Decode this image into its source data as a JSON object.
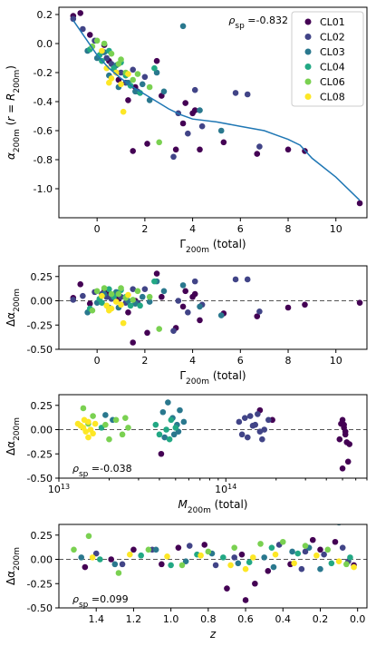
{
  "colors": {
    "CL01": "#440154",
    "CL02": "#414487",
    "CL03": "#2a788e",
    "CL04": "#22a884",
    "CL06": "#7ad151",
    "CL08": "#fde725",
    "fit": "#1f77b4",
    "zero_line": "#555555"
  },
  "legend": [
    "CL01",
    "CL02",
    "CL03",
    "CL04",
    "CL06",
    "CL08"
  ],
  "chart_data": [
    {
      "type": "scatter",
      "panel": "top",
      "annotation": "ρ_sp = -0.832",
      "xlabel": "Γ_200m (total)",
      "ylabel": "α_200m (r = R_200m)",
      "xlim": [
        -1.6,
        11.3
      ],
      "ylim": [
        -1.2,
        0.25
      ],
      "xticks": [
        "0",
        "2",
        "4",
        "6",
        "8",
        "10"
      ],
      "yticks": [
        "0.2",
        "0.0",
        "-0.2",
        "-0.4",
        "-0.6",
        "-0.8",
        "-1.0"
      ],
      "fit_line": {
        "x": [
          -1.0,
          -0.5,
          0,
          0.5,
          1,
          1.5,
          2,
          2.5,
          3,
          3.5,
          4,
          5,
          6,
          7,
          7.5,
          8,
          8.5,
          9,
          10,
          11
        ],
        "y": [
          0.16,
          0.04,
          -0.08,
          -0.17,
          -0.24,
          -0.3,
          -0.35,
          -0.4,
          -0.45,
          -0.49,
          -0.52,
          -0.54,
          -0.57,
          -0.6,
          -0.63,
          -0.66,
          -0.7,
          -0.79,
          -0.92,
          -1.08
        ]
      },
      "series": [
        {
          "name": "CL01",
          "x": [
            -1.0,
            -0.7,
            -0.3,
            0.3,
            0.5,
            0.8,
            1.3,
            1.5,
            2.1,
            2.7,
            3.3,
            3.6,
            3.7,
            4.0,
            4.1,
            4.3,
            5.3,
            6.7,
            8.0,
            8.7,
            11.0,
            1.6,
            0.9,
            2.5
          ],
          "y": [
            0.19,
            0.21,
            0.06,
            -0.01,
            -0.12,
            -0.2,
            -0.39,
            -0.74,
            -0.69,
            -0.36,
            -0.73,
            -0.55,
            -0.41,
            -0.48,
            -0.46,
            -0.73,
            -0.68,
            -0.76,
            -0.73,
            -0.74,
            -1.1,
            -0.3,
            -0.25,
            -0.12
          ]
        },
        {
          "name": "CL02",
          "x": [
            -1.0,
            -0.6,
            -0.1,
            0.2,
            0.6,
            1.0,
            1.2,
            1.7,
            2.0,
            3.2,
            3.4,
            3.8,
            4.1,
            4.4,
            5.8,
            6.3,
            6.8,
            0.4,
            1.5
          ],
          "y": [
            0.17,
            0.1,
            0.02,
            -0.06,
            -0.14,
            -0.2,
            -0.27,
            -0.33,
            -0.23,
            -0.78,
            -0.48,
            -0.62,
            -0.32,
            -0.57,
            -0.34,
            -0.35,
            -0.71,
            -0.1,
            -0.18
          ]
        },
        {
          "name": "CL03",
          "x": [
            -0.4,
            0,
            0.3,
            0.5,
            0.9,
            1.3,
            1.6,
            2.2,
            2.5,
            2.8,
            3.6,
            4.3,
            5.2,
            0.8,
            1.9
          ],
          "y": [
            -0.05,
            -0.1,
            -0.06,
            -0.22,
            -0.3,
            -0.27,
            -0.33,
            -0.39,
            -0.2,
            -0.33,
            0.12,
            -0.46,
            -0.6,
            -0.15,
            -0.28
          ]
        },
        {
          "name": "CL04",
          "x": [
            -0.3,
            0.1,
            0.2,
            0.7,
            1.0,
            1.4,
            1.8,
            2.4,
            1.2,
            0.5
          ],
          "y": [
            -0.04,
            -0.08,
            -0.12,
            -0.17,
            -0.13,
            -0.29,
            -0.34,
            -0.17,
            -0.22,
            -0.05
          ]
        },
        {
          "name": "CL06",
          "x": [
            -0.2,
            0.3,
            0.6,
            0.9,
            1.2,
            1.5,
            1.7,
            2.2,
            2.6,
            0.0,
            1.0
          ],
          "y": [
            -0.02,
            0.0,
            -0.07,
            -0.14,
            -0.2,
            -0.25,
            -0.21,
            -0.3,
            -0.68,
            0.02,
            -0.11
          ]
        },
        {
          "name": "CL08",
          "x": [
            0.2,
            0.4,
            0.6,
            0.8,
            1.0,
            1.1,
            1.3,
            0.5
          ],
          "y": [
            -0.05,
            -0.17,
            -0.24,
            -0.2,
            -0.28,
            -0.47,
            -0.21,
            -0.27
          ]
        }
      ]
    },
    {
      "type": "scatter",
      "panel": "residual_vs_gamma",
      "xlabel": "Γ_200m (total)",
      "ylabel": "Δα_200m",
      "xlim": [
        -1.6,
        11.3
      ],
      "ylim": [
        -0.5,
        0.36
      ],
      "xticks": [
        "0",
        "2",
        "4",
        "6",
        "8",
        "10"
      ],
      "yticks": [
        "0.25",
        "0.00",
        "-0.25",
        "-0.50"
      ],
      "zero_line": 0,
      "series": [
        {
          "name": "CL01",
          "x": [
            -1.0,
            -0.7,
            -0.3,
            0.3,
            0.5,
            0.8,
            1.3,
            1.5,
            2.1,
            2.7,
            3.3,
            3.6,
            3.7,
            4.0,
            4.1,
            4.3,
            5.3,
            6.7,
            8.0,
            8.7,
            11.0,
            1.6,
            0.9,
            2.5
          ],
          "y": [
            0.03,
            0.17,
            -0.03,
            0.1,
            0.07,
            0.06,
            -0.12,
            -0.43,
            -0.33,
            0.04,
            -0.28,
            -0.06,
            0.1,
            0.04,
            0.07,
            -0.2,
            -0.13,
            -0.16,
            -0.07,
            -0.04,
            -0.02,
            0.0,
            0.02,
            0.28
          ]
        },
        {
          "name": "CL02",
          "x": [
            -1.0,
            -0.6,
            -0.1,
            0.2,
            0.6,
            1.0,
            1.2,
            1.7,
            2.0,
            3.2,
            3.4,
            3.8,
            4.1,
            4.4,
            5.8,
            6.3,
            6.8,
            0.4,
            1.5
          ],
          "y": [
            0.01,
            0.05,
            0.09,
            0.07,
            0.02,
            0.04,
            -0.02,
            -0.02,
            0.12,
            -0.31,
            -0.0,
            -0.12,
            0.2,
            -0.04,
            0.22,
            0.22,
            -0.11,
            0.04,
            0.12
          ]
        },
        {
          "name": "CL03",
          "x": [
            -0.4,
            0,
            0.3,
            0.5,
            0.9,
            1.3,
            1.6,
            2.2,
            2.5,
            2.8,
            3.6,
            4.3,
            5.2,
            0.8,
            1.9
          ],
          "y": [
            -0.12,
            -0.02,
            0.07,
            -0.07,
            -0.07,
            0.0,
            -0.03,
            -0.01,
            0.2,
            0.1,
            0.16,
            -0.06,
            -0.15,
            0.09,
            0.04
          ]
        },
        {
          "name": "CL04",
          "x": [
            -0.3,
            0.1,
            0.2,
            0.7,
            1.0,
            1.4,
            1.8,
            2.4,
            1.2,
            0.5
          ],
          "y": [
            -0.08,
            0.02,
            -0.02,
            0.04,
            0.11,
            -0.05,
            -0.05,
            0.2,
            0.04,
            0.12
          ]
        },
        {
          "name": "CL06",
          "x": [
            -0.2,
            0.3,
            0.6,
            0.9,
            1.2,
            1.5,
            1.7,
            2.2,
            2.6,
            0.0,
            1.0
          ],
          "y": [
            -0.1,
            0.13,
            0.07,
            0.07,
            0.03,
            0.01,
            0.1,
            0.04,
            -0.29,
            0.1,
            0.13
          ]
        },
        {
          "name": "CL08",
          "x": [
            0.2,
            0.4,
            0.6,
            0.8,
            1.0,
            1.1,
            1.3,
            0.5
          ],
          "y": [
            0.05,
            -0.05,
            -0.08,
            -0.01,
            -0.04,
            -0.23,
            0.06,
            -0.1
          ]
        }
      ]
    },
    {
      "type": "scatter",
      "panel": "residual_vs_mass",
      "annotation": "ρ_sp = -0.038",
      "xlabel": "M_200m (total)",
      "ylabel": "Δα_200m",
      "x_scale": "log",
      "xlim": [
        10000000000000.0,
        700000000000000.0
      ],
      "ylim": [
        -0.5,
        0.36
      ],
      "xticks": [
        "10^13",
        "10^14"
      ],
      "yticks": [
        "0.25",
        "0.00",
        "-0.25",
        "-0.50"
      ],
      "zero_line": 0,
      "series": [
        {
          "name": "CL01",
          "x": [
            500000000000000.0,
            510000000000000.0,
            520000000000000.0,
            530000000000000.0,
            500000000000000.0,
            540000000000000.0,
            490000000000000.0,
            520000000000000.0,
            41000000000000.0,
            160000000000000.0,
            190000000000000.0,
            550000000000000.0,
            510000000000000.0,
            480000000000000.0
          ],
          "y": [
            0.1,
            0.02,
            -0.05,
            -0.13,
            -0.4,
            -0.33,
            0.06,
            -0.02,
            -0.25,
            0.2,
            0.1,
            -0.15,
            0.05,
            -0.1
          ]
        },
        {
          "name": "CL02",
          "x": [
            120000000000000.0,
            130000000000000.0,
            140000000000000.0,
            150000000000000.0,
            160000000000000.0,
            170000000000000.0,
            180000000000000.0,
            135000000000000.0,
            155000000000000.0,
            125000000000000.0,
            145000000000000.0,
            165000000000000.0
          ],
          "y": [
            0.08,
            0.12,
            0.14,
            0.05,
            -0.02,
            0.0,
            0.1,
            -0.08,
            0.16,
            -0.05,
            0.04,
            -0.1
          ]
        },
        {
          "name": "CL03",
          "x": [
            42000000000000.0,
            45000000000000.0,
            48000000000000.0,
            51000000000000.0,
            53000000000000.0,
            56000000000000.0,
            43000000000000.0,
            49000000000000.0,
            19000000000000.0,
            21000000000000.0,
            52000000000000.0
          ],
          "y": [
            0.18,
            0.28,
            0.12,
            0.05,
            0.2,
            0.08,
            -0.08,
            -0.05,
            0.15,
            0.1,
            -0.02
          ]
        },
        {
          "name": "CL04",
          "x": [
            38000000000000.0,
            40000000000000.0,
            44000000000000.0,
            47000000000000.0,
            50000000000000.0,
            46000000000000.0,
            18000000000000.0
          ],
          "y": [
            0.05,
            -0.05,
            0.0,
            0.1,
            0.02,
            -0.1,
            0.02
          ]
        },
        {
          "name": "CL06",
          "x": [
            14000000000000.0,
            16000000000000.0,
            19000000000000.0,
            22000000000000.0,
            24000000000000.0,
            26000000000000.0,
            15000000000000.0,
            20000000000000.0,
            25000000000000.0
          ],
          "y": [
            0.22,
            0.14,
            0.05,
            0.1,
            -0.05,
            0.02,
            0.06,
            -0.1,
            0.12
          ]
        },
        {
          "name": "CL08",
          "x": [
            13000000000000.0,
            14000000000000.0,
            14500000000000.0,
            15000000000000.0,
            15500000000000.0,
            16000000000000.0,
            13500000000000.0,
            16500000000000.0,
            15000000000000.0,
            14200000000000.0
          ],
          "y": [
            0.06,
            0.02,
            -0.02,
            0.08,
            0.0,
            -0.04,
            0.04,
            0.06,
            -0.08,
            0.1
          ]
        }
      ]
    },
    {
      "type": "scatter",
      "panel": "residual_vs_redshift",
      "annotation": "ρ_sp = 0.099",
      "xlabel": "z",
      "ylabel": "Δα_200m",
      "xlim": [
        1.6,
        -0.05
      ],
      "ylim": [
        -0.5,
        0.36
      ],
      "xticks": [
        "1.4",
        "1.2",
        "1.0",
        "0.8",
        "0.6",
        "0.4",
        "0.2",
        "0.0"
      ],
      "yticks": [
        "0.25",
        "0.00",
        "-0.25",
        "-0.50"
      ],
      "zero_line": 0,
      "series": [
        {
          "name": "CL01",
          "x": [
            0.12,
            0.24,
            0.36,
            0.48,
            0.6,
            0.7,
            0.82,
            0.96,
            1.05,
            1.2,
            1.32,
            1.46,
            0.55,
            0.62,
            0.2,
            0.02
          ],
          "y": [
            0.18,
            0.2,
            -0.05,
            -0.12,
            -0.42,
            -0.3,
            0.15,
            0.12,
            -0.05,
            0.1,
            0.0,
            -0.08,
            -0.25,
            0.05,
            0.1,
            -0.06
          ]
        },
        {
          "name": "CL02",
          "x": [
            0.08,
            0.18,
            0.3,
            0.42,
            0.66,
            0.76,
            0.9,
            1.1,
            1.26,
            1.4,
            0.05,
            0.28
          ],
          "y": [
            0.12,
            0.05,
            -0.1,
            0.15,
            0.02,
            -0.06,
            0.14,
            0.1,
            -0.05,
            0.06,
            -0.02,
            0.08
          ]
        },
        {
          "name": "CL03",
          "x": [
            0.1,
            0.2,
            0.35,
            0.5,
            0.64,
            0.78,
            0.92,
            1.08,
            1.3,
            1.48,
            0.26,
            0.45
          ],
          "y": [
            0.38,
            -0.1,
            0.08,
            0.02,
            -0.04,
            0.06,
            -0.02,
            0.1,
            -0.05,
            0.02,
            0.12,
            -0.08
          ]
        },
        {
          "name": "CL04",
          "x": [
            0.04,
            0.14,
            0.32,
            0.46,
            0.58,
            0.72,
            0.86,
            1.0,
            1.16,
            1.38
          ],
          "y": [
            0.02,
            -0.04,
            0.06,
            0.12,
            -0.03,
            0.02,
            0.05,
            -0.06,
            0.04,
            0.0
          ]
        },
        {
          "name": "CL06",
          "x": [
            0.06,
            0.16,
            0.28,
            0.4,
            0.52,
            0.66,
            0.8,
            0.94,
            1.12,
            1.28,
            1.44,
            1.52
          ],
          "y": [
            -0.05,
            0.1,
            0.14,
            0.18,
            0.16,
            0.12,
            0.08,
            -0.06,
            0.1,
            -0.14,
            0.24,
            0.1
          ]
        },
        {
          "name": "CL08",
          "x": [
            0.02,
            0.1,
            0.22,
            0.34,
            0.44,
            0.56,
            0.68,
            0.84,
            1.02,
            1.22,
            1.42,
            0.6
          ],
          "y": [
            -0.08,
            -0.02,
            0.04,
            -0.04,
            0.05,
            0.02,
            -0.06,
            0.04,
            0.03,
            0.05,
            0.02,
            -0.1
          ]
        }
      ]
    }
  ]
}
